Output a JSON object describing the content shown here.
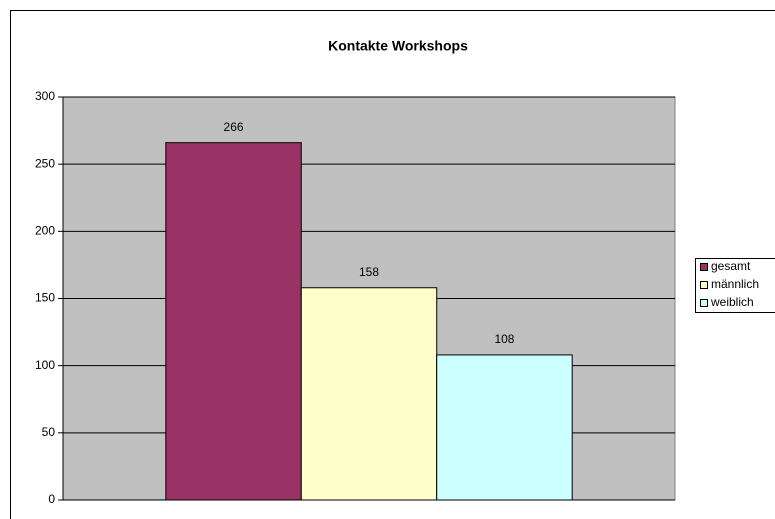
{
  "chart_data": {
    "type": "bar",
    "title": "Kontakte Workshops",
    "categories": [
      null
    ],
    "series": [
      {
        "name": "gesamt",
        "color": "#993366",
        "values": [
          266
        ]
      },
      {
        "name": "männlich",
        "color": "#ffffcc",
        "values": [
          158
        ]
      },
      {
        "name": "weiblich",
        "color": "#ccffff",
        "values": [
          108
        ]
      }
    ],
    "ylim": [
      0,
      300
    ],
    "yticks": [
      0,
      50,
      100,
      150,
      200,
      250,
      300
    ],
    "grid": true,
    "legend": "right",
    "plot_background": "#c0c0c0"
  }
}
